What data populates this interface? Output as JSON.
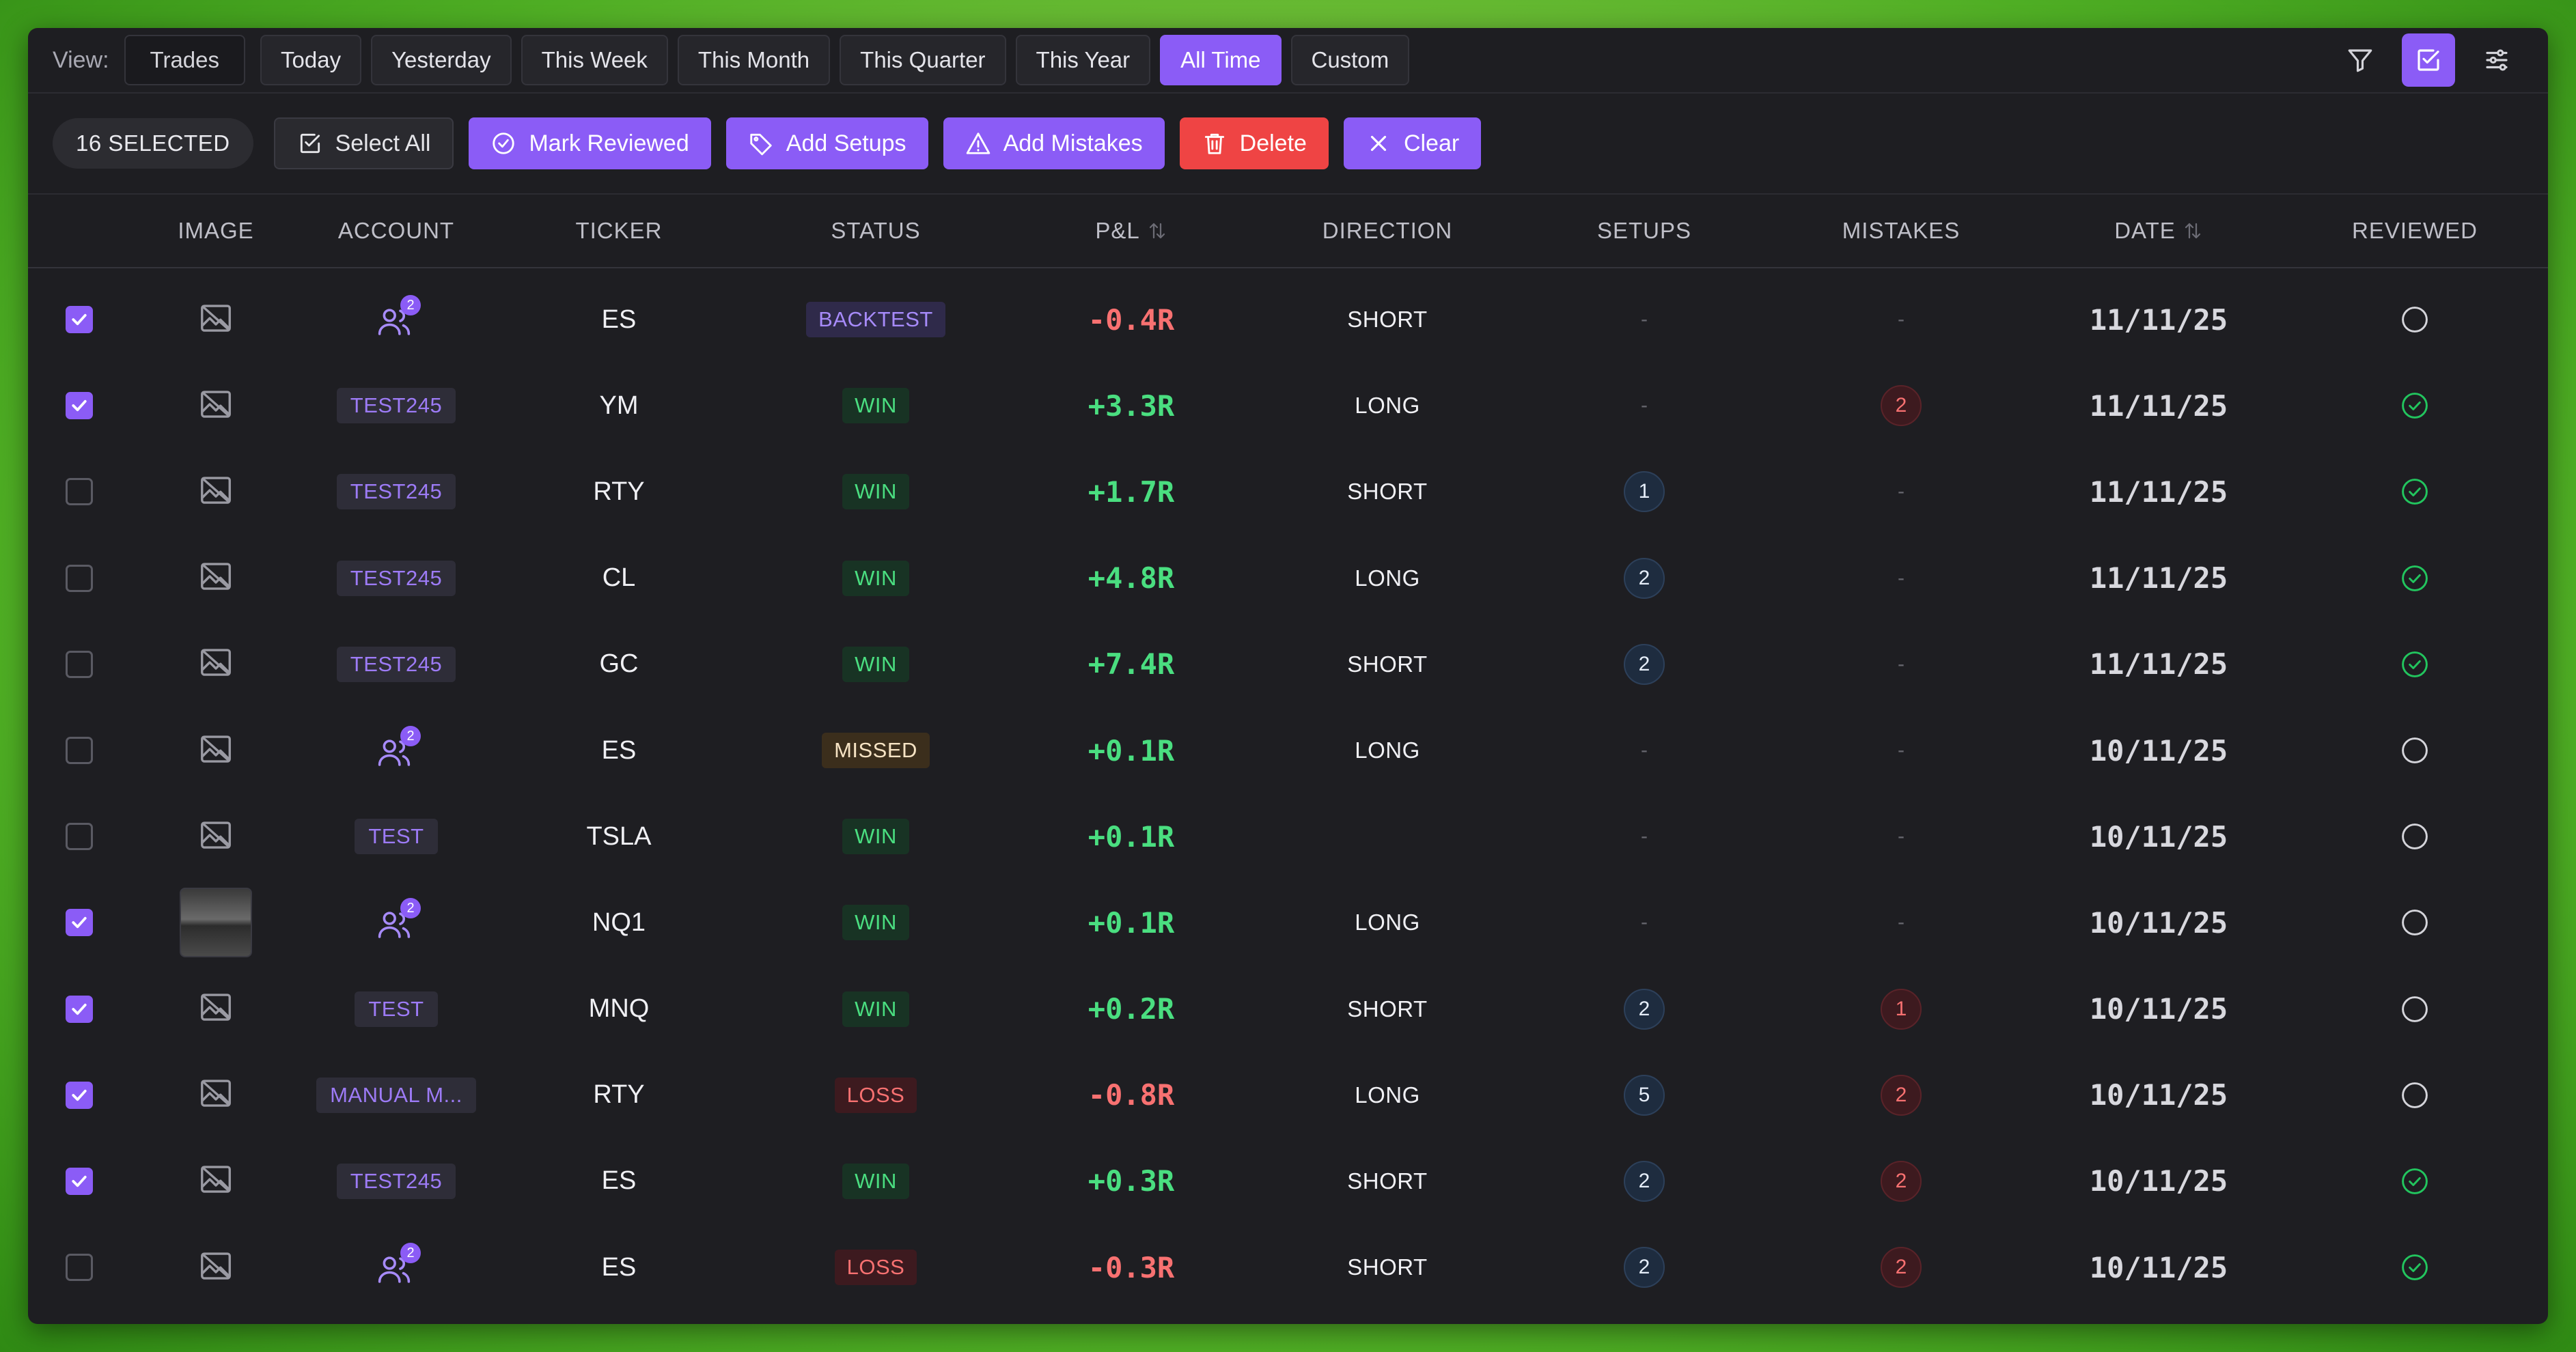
{
  "toolbar": {
    "view_label": "View:",
    "view_value": "Trades",
    "ranges": [
      "Today",
      "Yesterday",
      "This Week",
      "This Month",
      "This Quarter",
      "This Year",
      "All Time",
      "Custom"
    ],
    "active_range": "All Time"
  },
  "actions": {
    "selected_count": "16 SELECTED",
    "select_all": "Select All",
    "mark_reviewed": "Mark Reviewed",
    "add_setups": "Add Setups",
    "add_mistakes": "Add Mistakes",
    "delete": "Delete",
    "clear": "Clear"
  },
  "columns": [
    "IMAGE",
    "ACCOUNT",
    "TICKER",
    "STATUS",
    "P&L",
    "DIRECTION",
    "SETUPS",
    "MISTAKES",
    "DATE",
    "REVIEWED"
  ],
  "rows": [
    {
      "checked": true,
      "image": "none",
      "account": {
        "multi": true,
        "count": "2"
      },
      "ticker": "ES",
      "status": "BACKTEST",
      "pnl": "-0.4R",
      "direction": "SHORT",
      "setups": "-",
      "mistakes": "-",
      "date": "11/11/25",
      "reviewed": false
    },
    {
      "checked": true,
      "image": "none",
      "account": {
        "label": "TEST245"
      },
      "ticker": "YM",
      "status": "WIN",
      "pnl": "+3.3R",
      "direction": "LONG",
      "setups": "-",
      "mistakes": "2",
      "date": "11/11/25",
      "reviewed": true
    },
    {
      "checked": false,
      "image": "none",
      "account": {
        "label": "TEST245"
      },
      "ticker": "RTY",
      "status": "WIN",
      "pnl": "+1.7R",
      "direction": "SHORT",
      "setups": "1",
      "mistakes": "-",
      "date": "11/11/25",
      "reviewed": true
    },
    {
      "checked": false,
      "image": "none",
      "account": {
        "label": "TEST245"
      },
      "ticker": "CL",
      "status": "WIN",
      "pnl": "+4.8R",
      "direction": "LONG",
      "setups": "2",
      "mistakes": "-",
      "date": "11/11/25",
      "reviewed": true
    },
    {
      "checked": false,
      "image": "none",
      "account": {
        "label": "TEST245"
      },
      "ticker": "GC",
      "status": "WIN",
      "pnl": "+7.4R",
      "direction": "SHORT",
      "setups": "2",
      "mistakes": "-",
      "date": "11/11/25",
      "reviewed": true
    },
    {
      "checked": false,
      "image": "none",
      "account": {
        "multi": true,
        "count": "2"
      },
      "ticker": "ES",
      "status": "MISSED",
      "pnl": "+0.1R",
      "direction": "LONG",
      "setups": "-",
      "mistakes": "-",
      "date": "10/11/25",
      "reviewed": false
    },
    {
      "checked": false,
      "image": "none",
      "account": {
        "label": "TEST"
      },
      "ticker": "TSLA",
      "status": "WIN",
      "pnl": "+0.1R",
      "direction": "",
      "setups": "-",
      "mistakes": "-",
      "date": "10/11/25",
      "reviewed": false
    },
    {
      "checked": true,
      "image": "thumb",
      "account": {
        "multi": true,
        "count": "2"
      },
      "ticker": "NQ1",
      "status": "WIN",
      "pnl": "+0.1R",
      "direction": "LONG",
      "setups": "-",
      "mistakes": "-",
      "date": "10/11/25",
      "reviewed": false
    },
    {
      "checked": true,
      "image": "none",
      "account": {
        "label": "TEST"
      },
      "ticker": "MNQ",
      "status": "WIN",
      "pnl": "+0.2R",
      "direction": "SHORT",
      "setups": "2",
      "mistakes": "1",
      "date": "10/11/25",
      "reviewed": false
    },
    {
      "checked": true,
      "image": "none",
      "account": {
        "label": "MANUAL M..."
      },
      "ticker": "RTY",
      "status": "LOSS",
      "pnl": "-0.8R",
      "direction": "LONG",
      "setups": "5",
      "mistakes": "2",
      "date": "10/11/25",
      "reviewed": false
    },
    {
      "checked": true,
      "image": "none",
      "account": {
        "label": "TEST245"
      },
      "ticker": "ES",
      "status": "WIN",
      "pnl": "+0.3R",
      "direction": "SHORT",
      "setups": "2",
      "mistakes": "2",
      "date": "10/11/25",
      "reviewed": true
    },
    {
      "checked": false,
      "image": "none",
      "account": {
        "multi": true,
        "count": "2"
      },
      "ticker": "ES",
      "status": "LOSS",
      "pnl": "-0.3R",
      "direction": "SHORT",
      "setups": "2",
      "mistakes": "2",
      "date": "10/11/25",
      "reviewed": true
    }
  ],
  "colors": {
    "accent": "#8b5cf6",
    "danger": "#ef4444",
    "positive": "#4ade80",
    "negative": "#f87171",
    "panel": "#1e1e22"
  },
  "icons": {
    "filter": "filter-icon",
    "select_mode": "checkbox-icon",
    "settings": "sliders-icon"
  }
}
